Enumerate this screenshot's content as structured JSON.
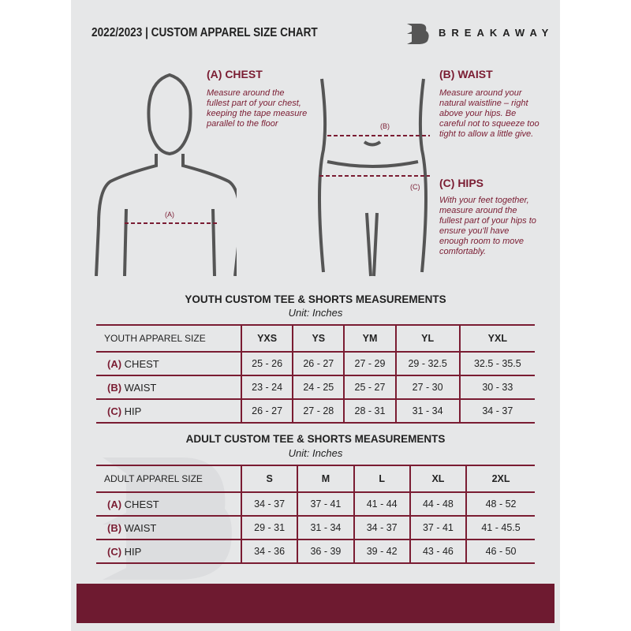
{
  "header": {
    "title": "2022/2023  |  CUSTOM APPAREL SIZE CHART",
    "brand": "BREAKAWAY",
    "logo_letter": "B"
  },
  "colors": {
    "accent": "#7a1c32",
    "background": "#e6e7e8",
    "footer": "#6e1a30"
  },
  "measure": {
    "chest": {
      "title": "(A) CHEST",
      "desc": "Measure around the fullest part of your chest, keeping the tape measure parallel to the floor",
      "marker": "(A)"
    },
    "waist": {
      "title": "(B) WAIST",
      "desc": "Measure around your natural waistline – right above your hips. Be careful not to squeeze too tight to allow a little give.",
      "marker": "(B)"
    },
    "hips": {
      "title": "(C) HIPS",
      "desc": "With your feet together, measure around the fullest part of your hips to ensure you'll have enough room to move comfortably.",
      "marker": "(C)"
    }
  },
  "youth": {
    "title": "YOUTH CUSTOM TEE & SHORTS MEASUREMENTS",
    "unit": "Unit: Inches",
    "header": [
      "YOUTH APPAREL SIZE",
      "YXS",
      "YS",
      "YM",
      "YL",
      "YXL"
    ],
    "rows": [
      {
        "letter": "(A)",
        "label": "CHEST",
        "values": [
          "25 - 26",
          "26 - 27",
          "27 - 29",
          "29 - 32.5",
          "32.5 - 35.5"
        ]
      },
      {
        "letter": "(B)",
        "label": "WAIST",
        "values": [
          "23 - 24",
          "24 - 25",
          "25 - 27",
          "27 - 30",
          "30 - 33"
        ]
      },
      {
        "letter": "(C)",
        "label": "HIP",
        "values": [
          "26 - 27",
          "27 - 28",
          "28 - 31",
          "31 - 34",
          "34 - 37"
        ]
      }
    ]
  },
  "adult": {
    "title": "ADULT CUSTOM TEE & SHORTS MEASUREMENTS",
    "unit": "Unit: Inches",
    "header": [
      "ADULT APPAREL SIZE",
      "S",
      "M",
      "L",
      "XL",
      "2XL"
    ],
    "rows": [
      {
        "letter": "(A)",
        "label": "CHEST",
        "values": [
          "34 - 37",
          "37 - 41",
          "41 - 44",
          "44 - 48",
          "48 - 52"
        ]
      },
      {
        "letter": "(B)",
        "label": "WAIST",
        "values": [
          "29 - 31",
          "31 - 34",
          "34 - 37",
          "37 - 41",
          "41 - 45.5"
        ]
      },
      {
        "letter": "(C)",
        "label": "HIP",
        "values": [
          "34 - 36",
          "36 - 39",
          "39 - 42",
          "43 - 46",
          "46 - 50"
        ]
      }
    ]
  }
}
